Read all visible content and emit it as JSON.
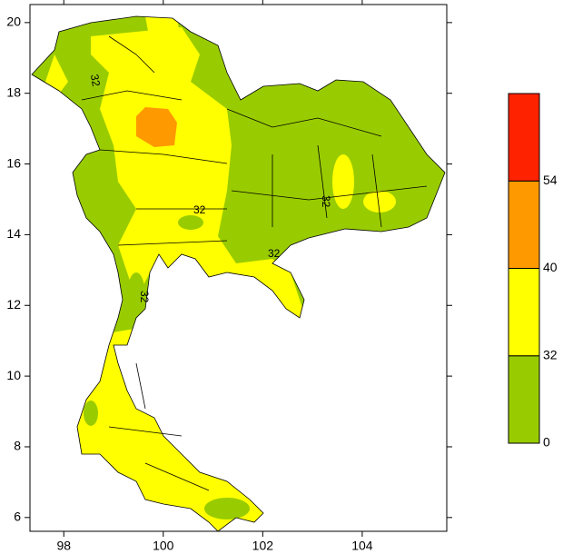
{
  "map": {
    "xlim": [
      97.32,
      105.7
    ],
    "ylim": [
      5.61,
      20.51
    ],
    "xticks": [
      98,
      100,
      102,
      104
    ],
    "yticks": [
      6,
      8,
      10,
      12,
      14,
      16,
      18,
      20
    ],
    "contour_label": "32",
    "colorbar": {
      "levels": [
        0,
        32,
        40,
        54
      ],
      "colors": [
        "#99cc00",
        "#ffff00",
        "#ff9900",
        "#ff2200"
      ]
    }
  }
}
